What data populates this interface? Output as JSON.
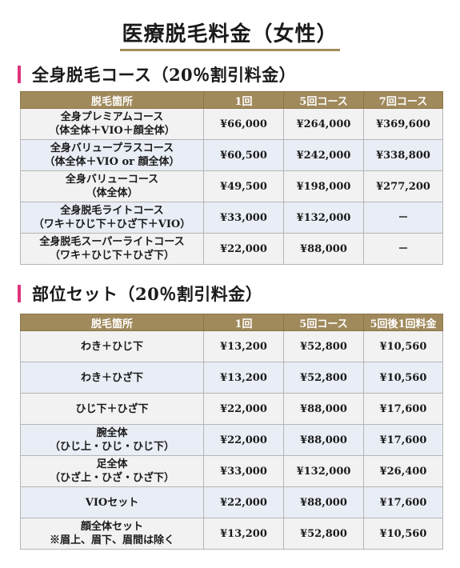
{
  "title": "医療脱毛料金（女性）",
  "section1": {
    "heading": "全身脱毛コース（20％割引料金）",
    "headers": [
      "脱毛箇所",
      "1回",
      "5回コース",
      "7回コース"
    ],
    "rows": [
      {
        "name1": "全身プレミアムコース",
        "name2": "（体全体＋VIO＋顔全体）",
        "c1": "¥66,000",
        "c2": "¥264,000",
        "c3": "¥369,600"
      },
      {
        "name1": "全身バリュープラスコース",
        "name2": "（体全体＋VIO or 顔全体）",
        "c1": "¥60,500",
        "c2": "¥242,000",
        "c3": "¥338,800"
      },
      {
        "name1": "全身バリューコース",
        "name2": "（体全体）",
        "c1": "¥49,500",
        "c2": "¥198,000",
        "c3": "¥277,200"
      },
      {
        "name1": "全身脱毛ライトコース",
        "name2": "（ワキ＋ひじ下＋ひざ下＋VIO）",
        "c1": "¥33,000",
        "c2": "¥132,000",
        "c3": "－"
      },
      {
        "name1": "全身脱毛スーパーライトコース",
        "name2": "（ワキ＋ひじ下＋ひざ下）",
        "c1": "¥22,000",
        "c2": "¥88,000",
        "c3": "－"
      }
    ]
  },
  "section2": {
    "heading": "部位セット（20％割引料金）",
    "headers": [
      "脱毛箇所",
      "1回",
      "5回コース",
      "5回後1回料金"
    ],
    "rows": [
      {
        "name1": "わき＋ひじ下",
        "name2": "",
        "c1": "¥13,200",
        "c2": "¥52,800",
        "c3": "¥10,560"
      },
      {
        "name1": "わき＋ひざ下",
        "name2": "",
        "c1": "¥13,200",
        "c2": "¥52,800",
        "c3": "¥10,560"
      },
      {
        "name1": "ひじ下＋ひざ下",
        "name2": "",
        "c1": "¥22,000",
        "c2": "¥88,000",
        "c3": "¥17,600"
      },
      {
        "name1": "腕全体",
        "name2": "（ひじ上・ひじ・ひじ下）",
        "c1": "¥22,000",
        "c2": "¥88,000",
        "c3": "¥17,600"
      },
      {
        "name1": "足全体",
        "name2": "（ひざ上・ひざ・ひざ下）",
        "c1": "¥33,000",
        "c2": "¥132,000",
        "c3": "¥26,400"
      },
      {
        "name1": "VIOセット",
        "name2": "",
        "c1": "¥22,000",
        "c2": "¥88,000",
        "c3": "¥17,600"
      },
      {
        "name1": "顔全体セット",
        "name2": "※眉上、眉下、眉間は除く",
        "c1": "¥13,200",
        "c2": "¥52,800",
        "c3": "¥10,560"
      }
    ]
  },
  "colors": {
    "header_bg": "#a0895b",
    "accent_pink": "#e0337c",
    "row_gray": "#f2f2f2",
    "row_blue": "#e9edf5"
  }
}
